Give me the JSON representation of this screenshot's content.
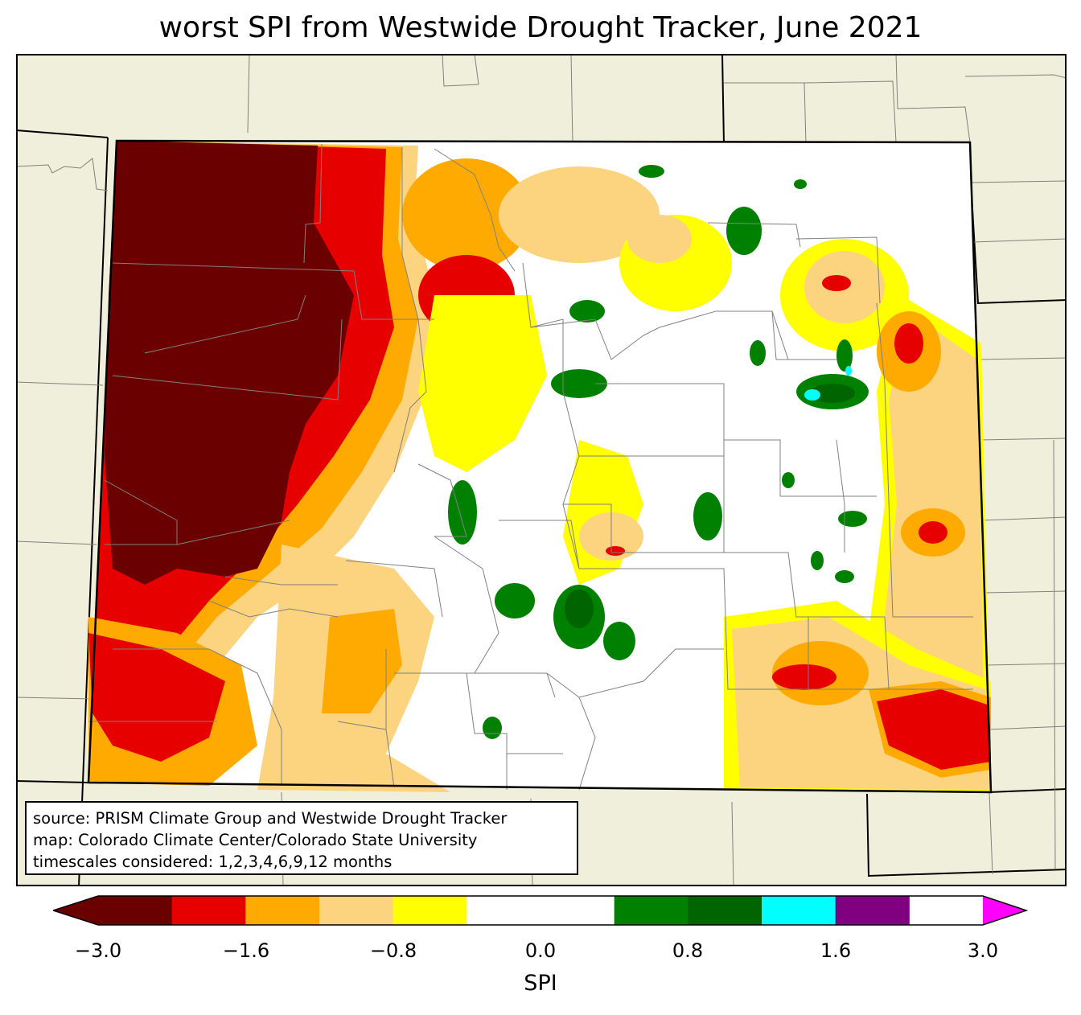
{
  "title": "worst SPI from Westwide Drought Tracker, June 2021",
  "source_lines": [
    "source: PRISM Climate Group and Westwide Drought Tracker",
    "map: Colorado Climate Center/Colorado State University",
    "timescales considered: 1,2,3,4,6,9,12 months"
  ],
  "colorbar": {
    "label": "SPI",
    "ticks": [
      "−3.0",
      "−1.6",
      "−0.8",
      "0.0",
      "0.8",
      "1.6",
      "3.0"
    ],
    "bins": [
      {
        "color": "#6b0000"
      },
      {
        "color": "#e60000"
      },
      {
        "color": "#ffaa00"
      },
      {
        "color": "#fcd37f"
      },
      {
        "color": "#ffff00"
      },
      {
        "color": "#ffffff"
      },
      {
        "color": "#ffffff"
      },
      {
        "color": "#008000"
      },
      {
        "color": "#006400"
      },
      {
        "color": "#00ffff"
      },
      {
        "color": "#800080"
      },
      {
        "color": "#ff00ff"
      }
    ]
  },
  "colors": {
    "land_outside": "#f0efdb",
    "border": "#000000",
    "county_line": "#808080"
  }
}
